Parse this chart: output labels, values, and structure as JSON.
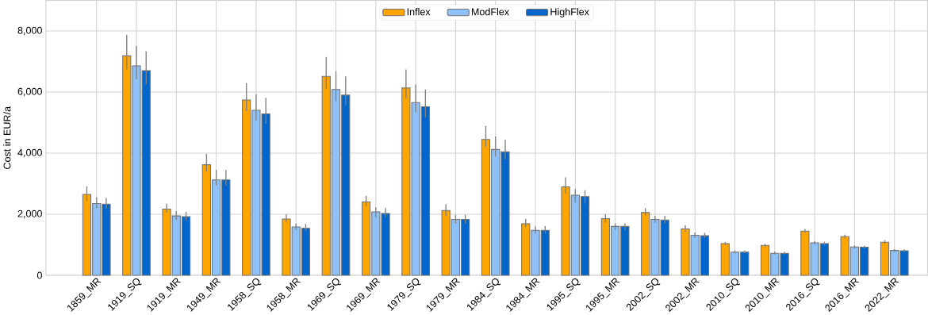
{
  "chart_data": {
    "type": "bar",
    "ylabel": "Cost in EUR/a",
    "categories": [
      "1859_MR",
      "1919_SQ",
      "1919_MR",
      "1949_MR",
      "1958_SQ",
      "1958_MR",
      "1969_SQ",
      "1969_MR",
      "1979_SQ",
      "1979_MR",
      "1984_SQ",
      "1984_MR",
      "1995_SQ",
      "1995_MR",
      "2002_SQ",
      "2002_MR",
      "2010_SQ",
      "2010_MR",
      "2016_SQ",
      "2016_MR",
      "2022_MR"
    ],
    "series": [
      {
        "name": "Inflex",
        "color": "#ffa500",
        "values": [
          2650,
          7185,
          2170,
          3620,
          5740,
          1845,
          6515,
          2400,
          6135,
          2125,
          4450,
          1690,
          2895,
          1855,
          2055,
          1520,
          1040,
          980,
          1450,
          1265,
          1085
        ],
        "errors": [
          [
            2440,
            2910
          ],
          [
            6745,
            7875
          ],
          [
            2050,
            2350
          ],
          [
            3395,
            3980
          ],
          [
            5385,
            6290
          ],
          [
            1750,
            2000
          ],
          [
            6110,
            7150
          ],
          [
            2250,
            2600
          ],
          [
            5790,
            6740
          ],
          [
            1950,
            2330
          ],
          [
            4210,
            4890
          ],
          [
            1580,
            1850
          ],
          [
            2670,
            3210
          ],
          [
            1720,
            2000
          ],
          [
            1950,
            2200
          ],
          [
            1420,
            1640
          ],
          [
            990,
            1090
          ],
          [
            930,
            1030
          ],
          [
            1390,
            1520
          ],
          [
            1210,
            1330
          ],
          [
            1030,
            1150
          ]
        ]
      },
      {
        "name": "ModFlex",
        "color": "#8ec1f7",
        "values": [
          2350,
          6860,
          1945,
          3125,
          5405,
          1585,
          6085,
          2080,
          5655,
          1830,
          4120,
          1475,
          2625,
          1600,
          1830,
          1310,
          760,
          720,
          1065,
          930,
          815
        ],
        "errors": [
          [
            2200,
            2550
          ],
          [
            6425,
            7510
          ],
          [
            1820,
            2100
          ],
          [
            2940,
            3455
          ],
          [
            5070,
            5930
          ],
          [
            1480,
            1700
          ],
          [
            5700,
            6680
          ],
          [
            1900,
            2230
          ],
          [
            5340,
            6245
          ],
          [
            1700,
            1980
          ],
          [
            3890,
            4545
          ],
          [
            1370,
            1600
          ],
          [
            2380,
            2830
          ],
          [
            1480,
            1700
          ],
          [
            1720,
            1950
          ],
          [
            1230,
            1400
          ],
          [
            720,
            810
          ],
          [
            680,
            770
          ],
          [
            1010,
            1120
          ],
          [
            880,
            980
          ],
          [
            770,
            860
          ]
        ]
      },
      {
        "name": "HighFlex",
        "color": "#0066cc",
        "values": [
          2330,
          6700,
          1920,
          3125,
          5285,
          1540,
          5900,
          2025,
          5520,
          1830,
          4045,
          1475,
          2580,
          1600,
          1810,
          1295,
          760,
          720,
          1040,
          920,
          805
        ],
        "errors": [
          [
            2180,
            2530
          ],
          [
            6245,
            7330
          ],
          [
            1800,
            2080
          ],
          [
            2940,
            3455
          ],
          [
            4960,
            5810
          ],
          [
            1450,
            1680
          ],
          [
            5565,
            6515
          ],
          [
            1900,
            2200
          ],
          [
            5175,
            6080
          ],
          [
            1700,
            1980
          ],
          [
            3800,
            4435
          ],
          [
            1370,
            1610
          ],
          [
            2350,
            2785
          ],
          [
            1480,
            1700
          ],
          [
            1700,
            1950
          ],
          [
            1220,
            1390
          ],
          [
            720,
            810
          ],
          [
            680,
            770
          ],
          [
            990,
            1100
          ],
          [
            870,
            970
          ],
          [
            760,
            850
          ]
        ]
      }
    ],
    "ylim": [
      0,
      9000
    ],
    "yticks": [
      {
        "value": 0,
        "label": "0"
      },
      {
        "value": 2000,
        "label": "2,000"
      },
      {
        "value": 4000,
        "label": "4,000"
      },
      {
        "value": 6000,
        "label": "6,000"
      },
      {
        "value": 8000,
        "label": "8,000"
      }
    ],
    "grid": true,
    "legend": "top"
  }
}
